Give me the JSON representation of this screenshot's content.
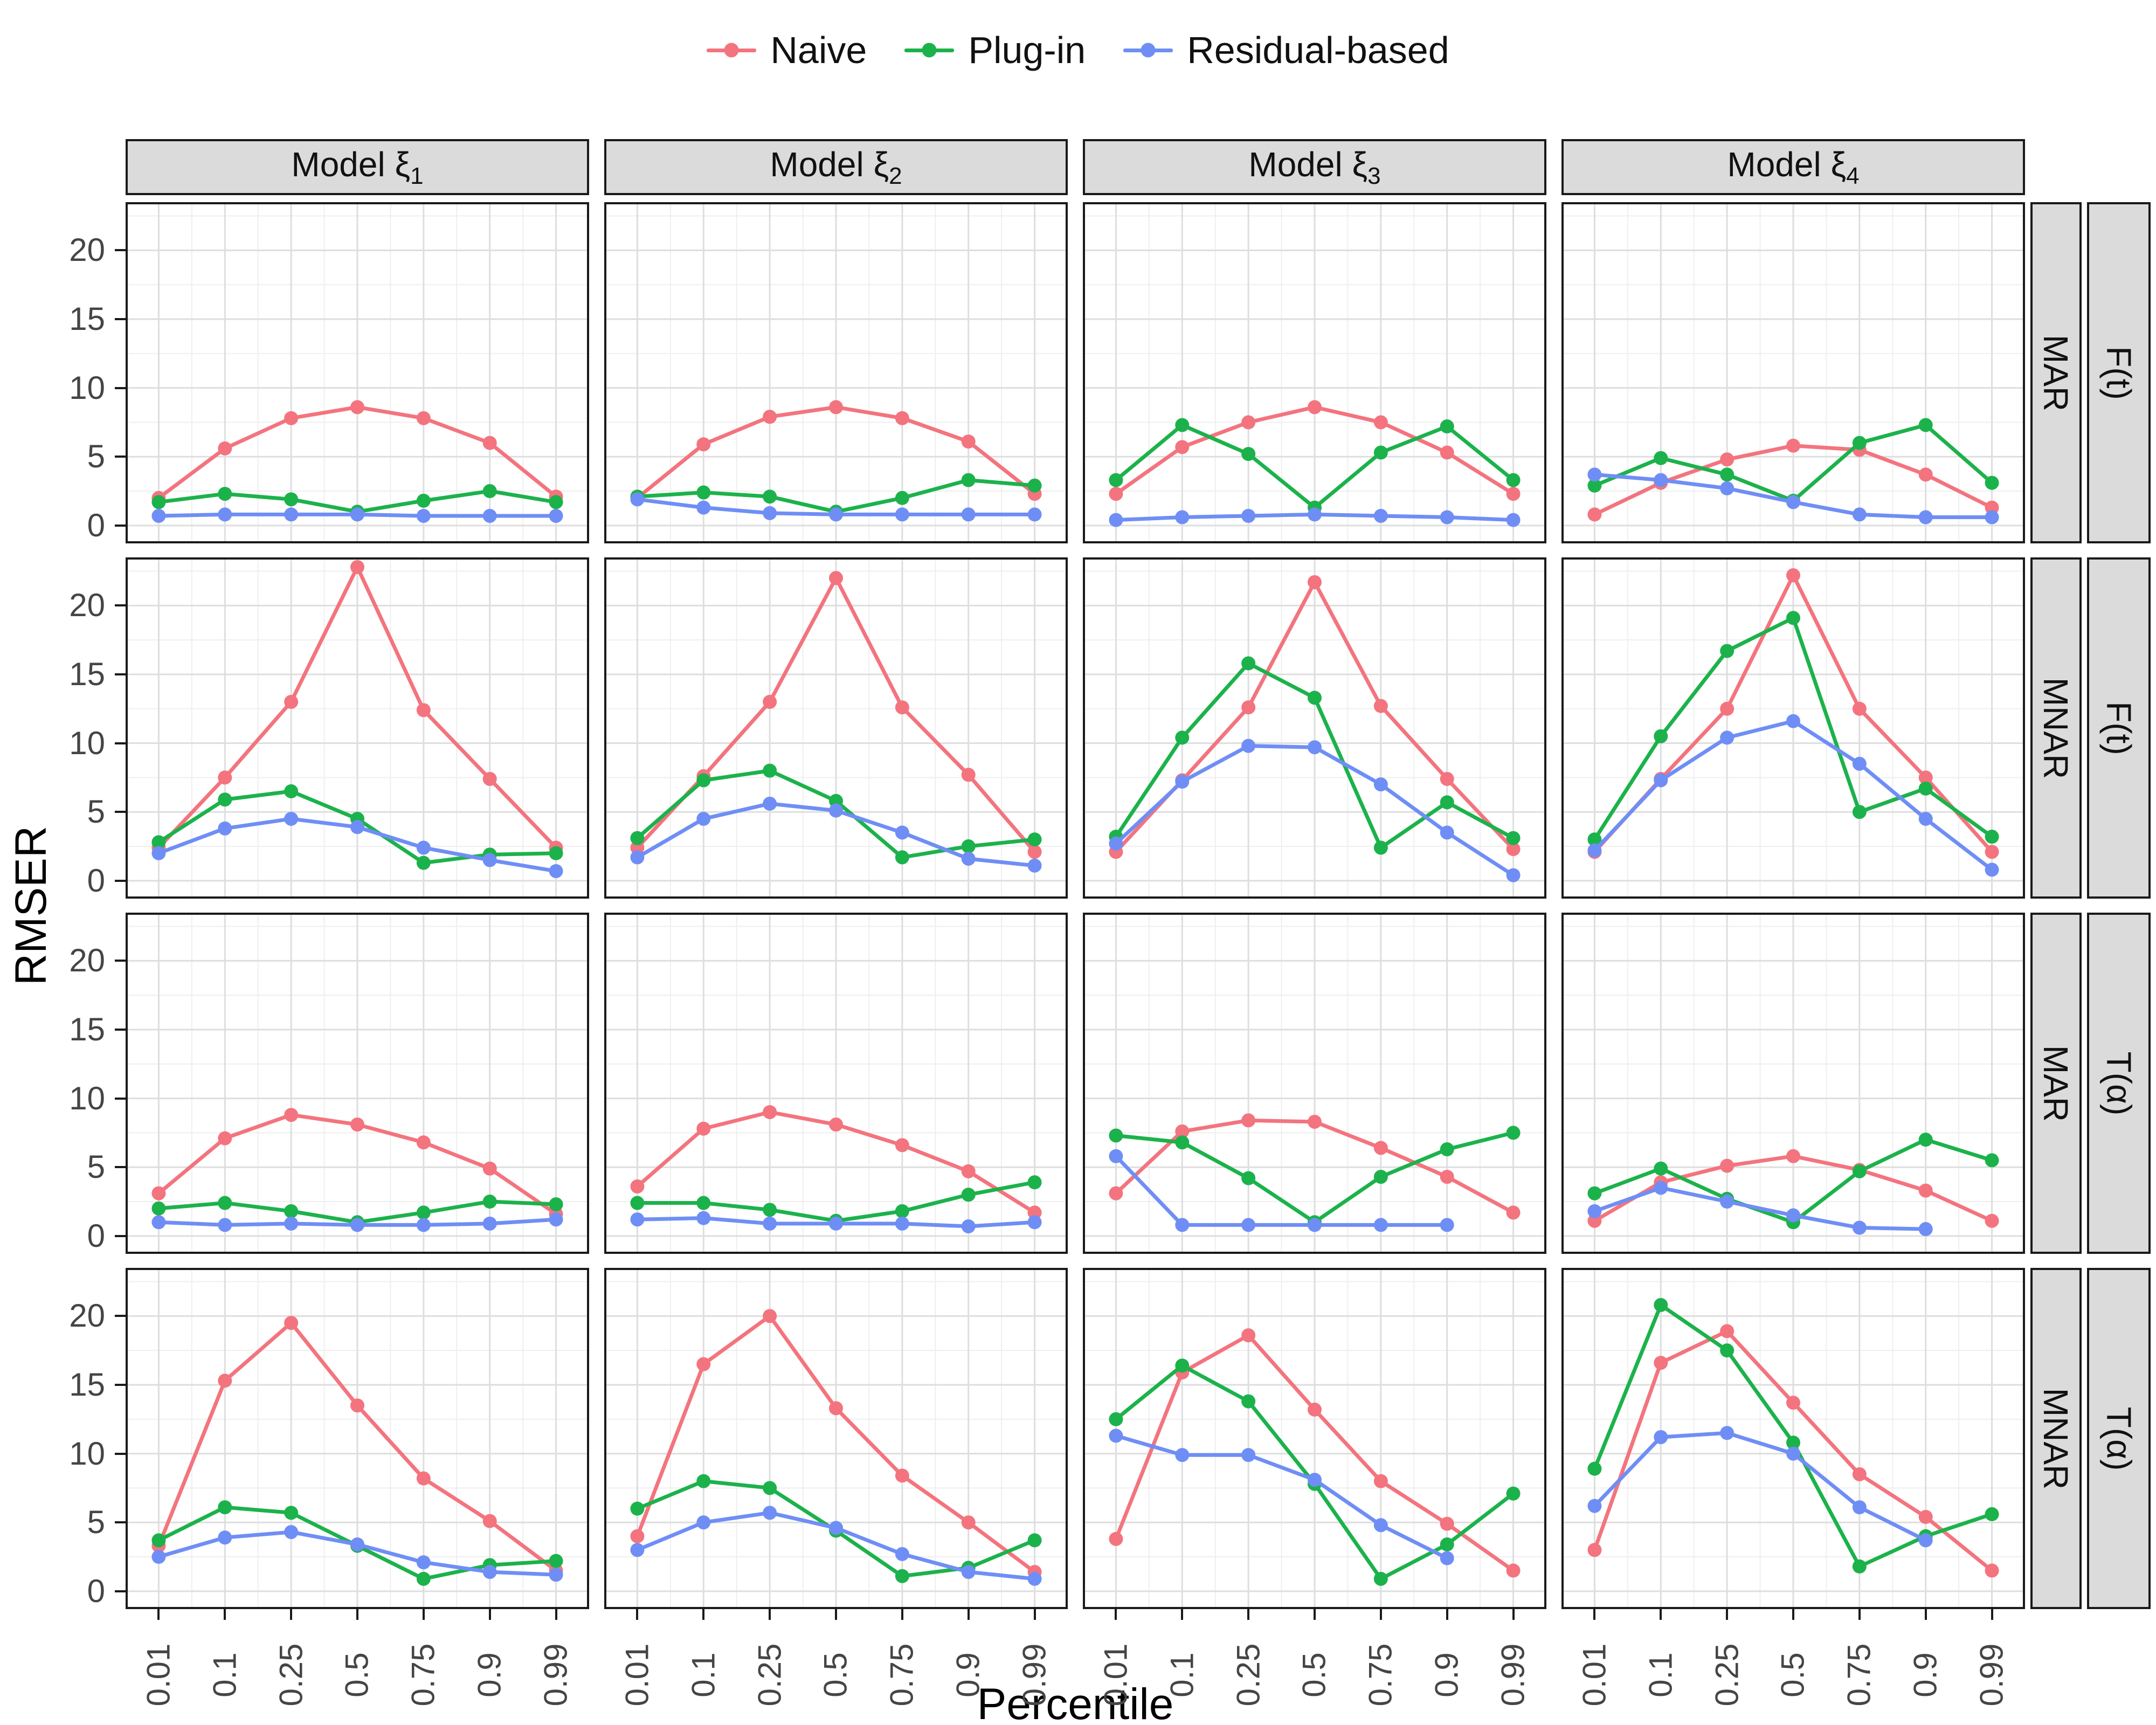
{
  "figure": {
    "y_axis_label": "RMSER",
    "x_axis_label": "Percentile",
    "colors": {
      "naive": "#F3747E",
      "plugin": "#1CB24B",
      "residual": "#6F8EF5"
    },
    "strip_background": "#DBDBDB",
    "panel_border_color": "#1A1A1A",
    "major_grid_color": "#DEDEDE",
    "minor_grid_color": "#EFEFEF",
    "tick_text_color": "#454545"
  },
  "legend": {
    "items": [
      {
        "label": "Naive",
        "color_key": "naive"
      },
      {
        "label": "Plug-in",
        "color_key": "plugin"
      },
      {
        "label": "Residual-based",
        "color_key": "residual"
      }
    ]
  },
  "chart_data": {
    "type": "line",
    "x_categories": [
      "0.01",
      "0.1",
      "0.25",
      "0.5",
      "0.75",
      "0.9",
      "0.99"
    ],
    "y_ticks": [
      0,
      5,
      10,
      15,
      20
    ],
    "ylim": [
      -1.3,
      23.5
    ],
    "grid": "on",
    "legend_position": "top",
    "series_names": [
      "Naive",
      "Plug-in",
      "Residual-based"
    ],
    "col_facets": [
      {
        "prefix": "Model ξ",
        "sub": "1"
      },
      {
        "prefix": "Model ξ",
        "sub": "2"
      },
      {
        "prefix": "Model ξ",
        "sub": "3"
      },
      {
        "prefix": "Model ξ",
        "sub": "4"
      }
    ],
    "row_facets": [
      {
        "missing": "MAR",
        "target": "F(t)"
      },
      {
        "missing": "MNAR",
        "target": "F(t)"
      },
      {
        "missing": "MAR",
        "target": "T(α)"
      },
      {
        "missing": "MNAR",
        "target": "T(α)"
      }
    ],
    "panels": [
      {
        "row": 0,
        "col": 0,
        "naive": [
          2.0,
          5.6,
          7.8,
          8.6,
          7.8,
          6.0,
          2.1
        ],
        "plugin": [
          1.7,
          2.3,
          1.9,
          1.0,
          1.8,
          2.5,
          1.7
        ],
        "residual": [
          0.7,
          0.8,
          0.8,
          0.8,
          0.7,
          0.7,
          0.7
        ]
      },
      {
        "row": 0,
        "col": 1,
        "naive": [
          2.0,
          5.9,
          7.9,
          8.6,
          7.8,
          6.1,
          2.3
        ],
        "plugin": [
          2.1,
          2.4,
          2.1,
          1.0,
          2.0,
          3.3,
          2.9
        ],
        "residual": [
          1.9,
          1.3,
          0.9,
          0.8,
          0.8,
          0.8,
          0.8
        ]
      },
      {
        "row": 0,
        "col": 2,
        "naive": [
          2.3,
          5.7,
          7.5,
          8.6,
          7.5,
          5.3,
          2.3
        ],
        "plugin": [
          3.3,
          7.3,
          5.2,
          1.3,
          5.3,
          7.2,
          3.3
        ],
        "residual": [
          0.4,
          0.6,
          0.7,
          0.8,
          0.7,
          0.6,
          0.4
        ]
      },
      {
        "row": 0,
        "col": 3,
        "naive": [
          0.8,
          3.1,
          4.8,
          5.8,
          5.5,
          3.7,
          1.3
        ],
        "plugin": [
          2.9,
          4.9,
          3.7,
          1.8,
          6.0,
          7.3,
          3.1
        ],
        "residual": [
          3.7,
          3.3,
          2.7,
          1.7,
          0.8,
          0.6,
          0.6
        ]
      },
      {
        "row": 1,
        "col": 0,
        "naive": [
          2.4,
          7.5,
          13.0,
          22.8,
          12.4,
          7.4,
          2.4
        ],
        "plugin": [
          2.8,
          5.9,
          6.5,
          4.5,
          1.3,
          1.9,
          2.0
        ],
        "residual": [
          2.0,
          3.8,
          4.5,
          3.9,
          2.4,
          1.5,
          0.7
        ]
      },
      {
        "row": 1,
        "col": 1,
        "naive": [
          2.4,
          7.6,
          13.0,
          22.0,
          12.6,
          7.7,
          2.1
        ],
        "plugin": [
          3.1,
          7.3,
          8.0,
          5.8,
          1.7,
          2.5,
          3.0
        ],
        "residual": [
          1.7,
          4.5,
          5.6,
          5.1,
          3.5,
          1.6,
          1.1
        ]
      },
      {
        "row": 1,
        "col": 2,
        "naive": [
          2.1,
          7.3,
          12.6,
          21.7,
          12.7,
          7.4,
          2.3
        ],
        "plugin": [
          3.2,
          10.4,
          15.8,
          13.3,
          2.4,
          5.7,
          3.1
        ],
        "residual": [
          2.7,
          7.2,
          9.8,
          9.7,
          7.0,
          3.5,
          0.4
        ]
      },
      {
        "row": 1,
        "col": 3,
        "naive": [
          2.1,
          7.4,
          12.5,
          22.2,
          12.5,
          7.5,
          2.1
        ],
        "plugin": [
          3.0,
          10.5,
          16.7,
          19.1,
          5.0,
          6.7,
          3.2
        ],
        "residual": [
          2.2,
          7.3,
          10.4,
          11.6,
          8.5,
          4.5,
          0.8
        ]
      },
      {
        "row": 2,
        "col": 0,
        "naive": [
          3.1,
          7.1,
          8.8,
          8.1,
          6.8,
          4.9,
          1.6
        ],
        "plugin": [
          2.0,
          2.4,
          1.8,
          1.0,
          1.7,
          2.5,
          2.3
        ],
        "residual": [
          1.0,
          0.8,
          0.9,
          0.8,
          0.8,
          0.9,
          1.2
        ]
      },
      {
        "row": 2,
        "col": 1,
        "naive": [
          3.6,
          7.8,
          9.0,
          8.1,
          6.6,
          4.7,
          1.7
        ],
        "plugin": [
          2.4,
          2.4,
          1.9,
          1.1,
          1.8,
          3.0,
          3.9
        ],
        "residual": [
          1.2,
          1.3,
          0.9,
          0.9,
          0.9,
          0.7,
          1.0
        ]
      },
      {
        "row": 2,
        "col": 2,
        "naive": [
          3.1,
          7.6,
          8.4,
          8.3,
          6.4,
          4.3,
          1.7
        ],
        "plugin": [
          7.3,
          6.8,
          4.2,
          1.0,
          4.3,
          6.3,
          7.5
        ],
        "residual": [
          5.8,
          0.8,
          0.8,
          0.8,
          0.8,
          0.8,
          null
        ]
      },
      {
        "row": 2,
        "col": 3,
        "naive": [
          1.1,
          3.9,
          5.1,
          5.8,
          4.8,
          3.3,
          1.1
        ],
        "plugin": [
          3.1,
          4.9,
          2.7,
          1.0,
          4.7,
          7.0,
          5.5
        ],
        "residual": [
          1.8,
          3.5,
          2.5,
          1.5,
          0.6,
          0.5,
          null
        ]
      },
      {
        "row": 3,
        "col": 0,
        "naive": [
          3.3,
          15.3,
          19.5,
          13.5,
          8.2,
          5.1,
          1.5
        ],
        "plugin": [
          3.7,
          6.1,
          5.7,
          3.3,
          0.9,
          1.9,
          2.2
        ],
        "residual": [
          2.5,
          3.9,
          4.3,
          3.4,
          2.1,
          1.4,
          1.2
        ]
      },
      {
        "row": 3,
        "col": 1,
        "naive": [
          4.0,
          16.5,
          20.0,
          13.3,
          8.4,
          5.0,
          1.4
        ],
        "plugin": [
          6.0,
          8.0,
          7.5,
          4.4,
          1.1,
          1.7,
          3.7
        ],
        "residual": [
          3.0,
          5.0,
          5.7,
          4.6,
          2.7,
          1.4,
          0.9
        ]
      },
      {
        "row": 3,
        "col": 2,
        "naive": [
          3.8,
          15.9,
          18.6,
          13.2,
          8.0,
          4.9,
          1.5
        ],
        "plugin": [
          12.5,
          16.4,
          13.8,
          7.8,
          0.9,
          3.4,
          7.1
        ],
        "residual": [
          11.3,
          9.9,
          9.9,
          8.1,
          4.8,
          2.4,
          null
        ]
      },
      {
        "row": 3,
        "col": 3,
        "naive": [
          3.0,
          16.6,
          18.9,
          13.7,
          8.5,
          5.4,
          1.5
        ],
        "plugin": [
          8.9,
          20.8,
          17.5,
          10.8,
          1.8,
          4.0,
          5.6
        ],
        "residual": [
          6.2,
          11.2,
          11.5,
          10.0,
          6.1,
          3.7,
          null
        ]
      }
    ]
  }
}
